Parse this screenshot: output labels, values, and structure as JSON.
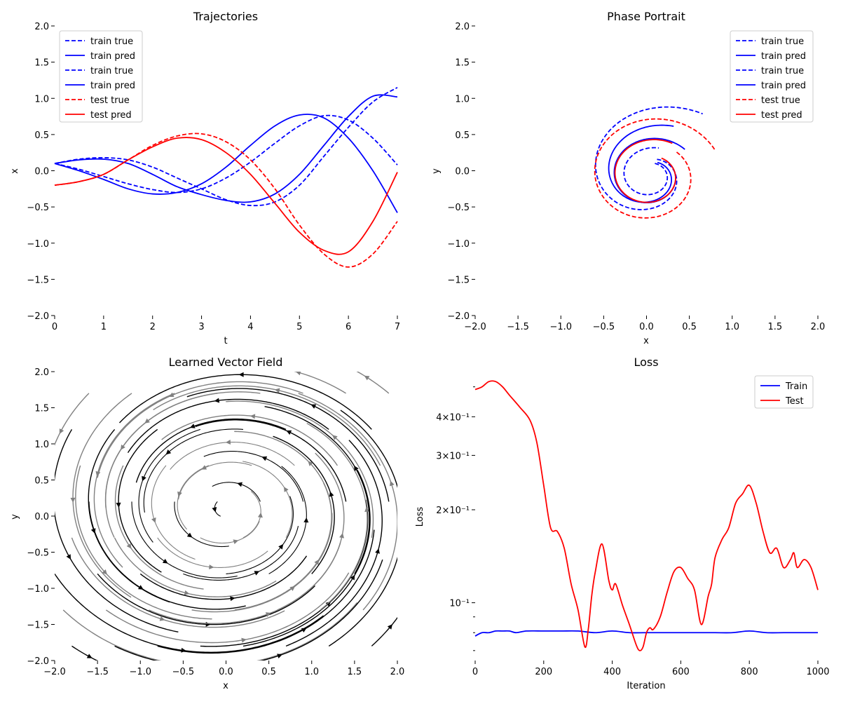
{
  "chart_data": [
    {
      "type": "line",
      "title": "Trajectories",
      "xlabel": "t",
      "ylabel": "x",
      "xlim": [
        0,
        7
      ],
      "ylim": [
        -2,
        2
      ],
      "xticks": [
        "0",
        "1",
        "2",
        "3",
        "4",
        "5",
        "6",
        "7"
      ],
      "yticks": [
        "−2.0",
        "−1.5",
        "−1.0",
        "−0.5",
        "0.0",
        "0.5",
        "1.0",
        "1.5",
        "2.0"
      ],
      "legend_position": "top-left",
      "legend": [
        "train true",
        "train pred",
        "train true",
        "train pred",
        "test true",
        "test pred"
      ],
      "series": [
        {
          "name": "train true",
          "color": "#0000ff",
          "dash": true,
          "x": [
            0,
            0.5,
            1,
            1.5,
            2,
            2.5,
            3,
            3.5,
            4,
            4.5,
            5,
            5.5,
            6,
            6.5,
            7
          ],
          "y": [
            0.1,
            0.16,
            0.18,
            0.15,
            0.05,
            -0.1,
            -0.25,
            -0.4,
            -0.48,
            -0.43,
            -0.2,
            0.2,
            0.6,
            0.95,
            1.15
          ]
        },
        {
          "name": "train pred",
          "color": "#0000ff",
          "dash": false,
          "x": [
            0,
            0.5,
            1,
            1.5,
            2,
            2.5,
            3,
            3.5,
            4,
            4.5,
            5,
            5.5,
            6,
            6.5,
            7
          ],
          "y": [
            0.1,
            0.15,
            0.16,
            0.1,
            -0.05,
            -0.22,
            -0.33,
            -0.41,
            -0.43,
            -0.32,
            -0.05,
            0.35,
            0.75,
            1.03,
            1.02
          ]
        },
        {
          "name": "train true",
          "color": "#0000ff",
          "dash": true,
          "x": [
            0,
            0.5,
            1,
            1.5,
            2,
            2.5,
            3,
            3.5,
            4,
            4.5,
            5,
            5.5,
            6,
            6.5,
            7
          ],
          "y": [
            0.1,
            0.02,
            -0.08,
            -0.18,
            -0.26,
            -0.3,
            -0.25,
            -0.1,
            0.12,
            0.38,
            0.62,
            0.76,
            0.7,
            0.45,
            0.08
          ]
        },
        {
          "name": "train pred",
          "color": "#0000ff",
          "dash": false,
          "x": [
            0,
            0.5,
            1,
            1.5,
            2,
            2.5,
            3,
            3.5,
            4,
            4.5,
            5,
            5.5,
            6,
            6.5,
            7
          ],
          "y": [
            0.1,
            0.0,
            -0.12,
            -0.25,
            -0.32,
            -0.3,
            -0.18,
            0.05,
            0.35,
            0.62,
            0.77,
            0.73,
            0.45,
            0.0,
            -0.58
          ]
        },
        {
          "name": "test true",
          "color": "#ff0000",
          "dash": true,
          "x": [
            0,
            0.5,
            1,
            1.5,
            2,
            2.5,
            3,
            3.5,
            4,
            4.5,
            5,
            5.5,
            6,
            6.5,
            7
          ],
          "y": [
            -0.2,
            -0.15,
            -0.05,
            0.15,
            0.35,
            0.48,
            0.51,
            0.4,
            0.15,
            -0.25,
            -0.75,
            -1.15,
            -1.33,
            -1.15,
            -0.7
          ]
        },
        {
          "name": "test pred",
          "color": "#ff0000",
          "dash": false,
          "x": [
            0,
            0.5,
            1,
            1.5,
            2,
            2.5,
            3,
            3.5,
            4,
            4.5,
            5,
            5.5,
            6,
            6.5,
            7
          ],
          "y": [
            -0.2,
            -0.15,
            -0.05,
            0.15,
            0.33,
            0.45,
            0.43,
            0.25,
            -0.05,
            -0.45,
            -0.85,
            -1.1,
            -1.12,
            -0.7,
            -0.02
          ]
        }
      ]
    },
    {
      "type": "line",
      "title": "Phase Portrait",
      "xlabel": "x",
      "ylabel": "y",
      "xlim": [
        -2,
        2
      ],
      "ylim": [
        -2,
        2
      ],
      "xticks": [
        "−2.0",
        "−1.5",
        "−1.0",
        "−0.5",
        "0.0",
        "0.5",
        "1.0",
        "1.5",
        "2.0"
      ],
      "yticks": [
        "−2.0",
        "−1.5",
        "−1.0",
        "−0.5",
        "0.0",
        "0.5",
        "1.0",
        "1.5",
        "2.0"
      ],
      "legend_position": "top-right",
      "legend": [
        "train true",
        "train pred",
        "train true",
        "train pred",
        "test true",
        "test pred"
      ],
      "series": [
        {
          "name": "train true",
          "color": "#0000ff",
          "dash": true,
          "spiral": [
            0.1,
            0.1,
            0.012,
            0.4,
            3.6,
            0.145,
            0.965,
            0.9
          ]
        },
        {
          "name": "train pred",
          "color": "#0000ff",
          "dash": false,
          "spiral": [
            0.13,
            0.11,
            0.03,
            0.65,
            3.6,
            0.145,
            0.965,
            0.85
          ]
        },
        {
          "name": "train true",
          "color": "#0000ff",
          "dash": true,
          "spiral": [
            0.12,
            0.14,
            0.02,
            0.71,
            3.8,
            0.155,
            0.975,
            0.95
          ]
        },
        {
          "name": "train pred",
          "color": "#0000ff",
          "dash": false,
          "spiral": [
            0.2,
            0.1,
            0.09,
            0.33,
            3.7,
            0.14,
            0.965,
            0.85
          ]
        },
        {
          "name": "test true",
          "color": "#ff0000",
          "dash": true,
          "spiral": [
            0.2,
            0.09,
            0.1,
            0.3,
            3.85,
            0.13,
            1.0,
            1.35
          ]
        },
        {
          "name": "test pred",
          "color": "#ff0000",
          "dash": false,
          "spiral": [
            0.15,
            0.12,
            0.08,
            0.31,
            3.65,
            0.12,
            0.975,
            0.9
          ]
        }
      ]
    },
    {
      "type": "scatter",
      "title": "Learned Vector Field",
      "xlabel": "x",
      "ylabel": "y",
      "xlim": [
        -2,
        2
      ],
      "ylim": [
        -2,
        2
      ],
      "xticks": [
        "−2.0",
        "−1.5",
        "−1.0",
        "−0.5",
        "0.0",
        "0.5",
        "1.0",
        "1.5",
        "2.0"
      ],
      "yticks": [
        "−2.0",
        "−1.5",
        "−1.0",
        "−0.5",
        "0.0",
        "0.5",
        "1.0",
        "1.5",
        "2.0"
      ],
      "field": {
        "a": -0.1,
        "b": 1.0,
        "cx": 0.0,
        "cy": 0.1
      },
      "colors": {
        "strong": "#000000",
        "weak": "#808080"
      }
    },
    {
      "type": "line",
      "title": "Loss",
      "xlabel": "Iteration",
      "ylabel": "Loss",
      "xlim": [
        0,
        1000
      ],
      "ylim": [
        0.065,
        0.56
      ],
      "yscale": "log",
      "xticks": [
        "0",
        "200",
        "400",
        "600",
        "800",
        "1000"
      ],
      "yticks": [
        "10⁻¹",
        "2×10⁻¹",
        "3×10⁻¹",
        "4×10⁻¹"
      ],
      "legend_position": "top-right",
      "legend": [
        "Train",
        "Test"
      ],
      "series": [
        {
          "name": "Train",
          "color": "#0000ff",
          "x": [
            0,
            20,
            40,
            60,
            80,
            100,
            120,
            150,
            200,
            250,
            300,
            350,
            400,
            450,
            500,
            550,
            600,
            650,
            700,
            750,
            800,
            850,
            900,
            950,
            1000
          ],
          "y": [
            0.078,
            0.08,
            0.08,
            0.081,
            0.081,
            0.081,
            0.08,
            0.081,
            0.081,
            0.081,
            0.081,
            0.08,
            0.081,
            0.08,
            0.08,
            0.08,
            0.08,
            0.08,
            0.08,
            0.08,
            0.081,
            0.08,
            0.08,
            0.08,
            0.08
          ]
        },
        {
          "name": "Test",
          "color": "#ff0000",
          "x": [
            0,
            20,
            40,
            60,
            80,
            100,
            130,
            160,
            180,
            200,
            220,
            240,
            260,
            280,
            300,
            320,
            330,
            340,
            350,
            370,
            390,
            400,
            410,
            430,
            450,
            470,
            480,
            490,
            500,
            510,
            520,
            540,
            560,
            580,
            600,
            620,
            640,
            660,
            680,
            690,
            700,
            720,
            740,
            760,
            780,
            800,
            820,
            840,
            860,
            880,
            900,
            920,
            930,
            940,
            960,
            980,
            1000
          ],
          "y": [
            0.49,
            0.5,
            0.52,
            0.52,
            0.5,
            0.47,
            0.43,
            0.39,
            0.33,
            0.24,
            0.175,
            0.17,
            0.15,
            0.115,
            0.095,
            0.072,
            0.082,
            0.105,
            0.125,
            0.155,
            0.118,
            0.11,
            0.115,
            0.098,
            0.085,
            0.073,
            0.07,
            0.072,
            0.08,
            0.083,
            0.082,
            0.09,
            0.108,
            0.126,
            0.13,
            0.12,
            0.11,
            0.085,
            0.105,
            0.115,
            0.14,
            0.16,
            0.175,
            0.21,
            0.225,
            0.24,
            0.21,
            0.17,
            0.145,
            0.15,
            0.13,
            0.138,
            0.145,
            0.13,
            0.138,
            0.13,
            0.11
          ]
        }
      ]
    }
  ]
}
